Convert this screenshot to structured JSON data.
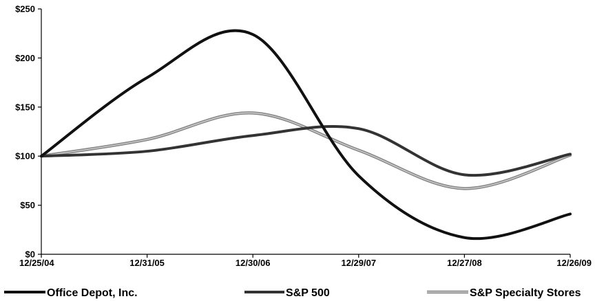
{
  "chart_data": {
    "type": "line",
    "title": "",
    "xlabel": "",
    "ylabel": "",
    "categories": [
      "12/25/04",
      "12/31/05",
      "12/30/06",
      "12/29/07",
      "12/27/08",
      "12/26/09"
    ],
    "y_tick_labels": [
      "$0",
      "$50",
      "$100",
      "$150",
      "$200",
      "$250"
    ],
    "y_ticks": [
      0,
      50,
      100,
      150,
      200,
      250
    ],
    "ylim": [
      0,
      250
    ],
    "grid": false,
    "legend_position": "bottom",
    "series": [
      {
        "name": "Office Depot, Inc.",
        "values": [
          100,
          180,
          224,
          80,
          17,
          41
        ],
        "color": "#111111"
      },
      {
        "name": "S&P 500",
        "values": [
          100,
          105,
          121,
          128,
          81,
          102
        ],
        "color": "#333333"
      },
      {
        "name": "S&P Specialty Stores",
        "values": [
          100,
          117,
          144,
          106,
          67,
          101
        ],
        "color": "#8a8a8a"
      }
    ]
  }
}
